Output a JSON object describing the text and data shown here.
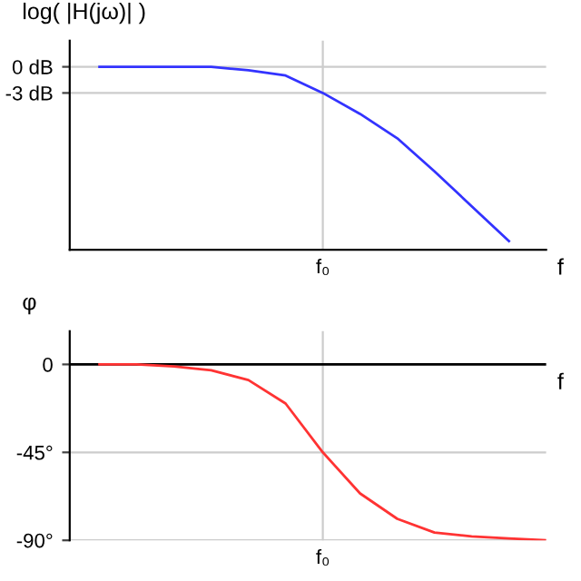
{
  "chart_data": [
    {
      "type": "line",
      "ylabel": "log( |H(jω)| )",
      "xlabel": "f",
      "ylim": [
        -21,
        3
      ],
      "categories": [
        null,
        null,
        null,
        null,
        null,
        null,
        "f₀",
        null,
        null,
        null,
        null,
        null
      ],
      "yticks": [
        {
          "value": 0,
          "label": "0 dB"
        },
        {
          "value": -3,
          "label": "-3 dB"
        }
      ],
      "grid": true,
      "series": [
        {
          "color": "#3333ff",
          "values": [
            0,
            0,
            0,
            0,
            -0.4,
            -1,
            -3,
            -5.4,
            -8.2,
            -12,
            -16,
            -20
          ]
        }
      ]
    },
    {
      "type": "line",
      "ylabel": "φ",
      "xlabel": "f",
      "ylim": [
        -90,
        17
      ],
      "categories": [
        null,
        null,
        null,
        null,
        null,
        null,
        "f₀",
        null,
        null,
        null,
        null,
        null,
        null
      ],
      "yticks": [
        {
          "value": 0,
          "label": "0"
        },
        {
          "value": -45,
          "label": "-45°"
        },
        {
          "value": -90,
          "label": "-90°"
        }
      ],
      "grid": true,
      "ref_lines": [
        {
          "axis": "y",
          "value": 0,
          "color": "#000000"
        }
      ],
      "series": [
        {
          "color": "#ff3333",
          "values": [
            0,
            0,
            -1,
            -3,
            -8,
            -20,
            -45,
            -66,
            -79,
            -86,
            -88,
            -89,
            -90
          ]
        }
      ]
    }
  ]
}
